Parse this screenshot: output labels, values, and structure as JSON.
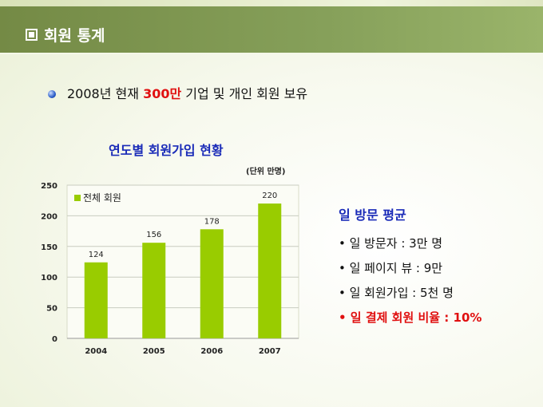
{
  "slide": {
    "title": "회원 통계",
    "headline_pre": "2008년 현재 ",
    "headline_highlight": "300만",
    "headline_post": " 기업 및 개인 회원 보유"
  },
  "chart_data": {
    "type": "bar",
    "title": "연도별 회원가입 현황",
    "unit_note": "(단위 만명)",
    "categories": [
      "2004",
      "2005",
      "2006",
      "2007"
    ],
    "series": [
      {
        "name": "전체 회원",
        "values": [
          124,
          156,
          178,
          220
        ],
        "color": "#99cc00"
      }
    ],
    "ylim": [
      0,
      250
    ],
    "yticks": [
      "0",
      "50",
      "100",
      "150",
      "200",
      "250"
    ],
    "grid": true,
    "legend": "top-left"
  },
  "side": {
    "title": "일 방문 평균",
    "items": [
      {
        "text": "• 일 방문자 : 3만 명",
        "highlight": false
      },
      {
        "text": "• 일 페이지 뷰 : 9만",
        "highlight": false
      },
      {
        "text": "• 일 회원가입 : 5천 명",
        "highlight": false
      },
      {
        "text": "• 일 결제 회원 비율 : 10%",
        "highlight": true
      }
    ]
  }
}
